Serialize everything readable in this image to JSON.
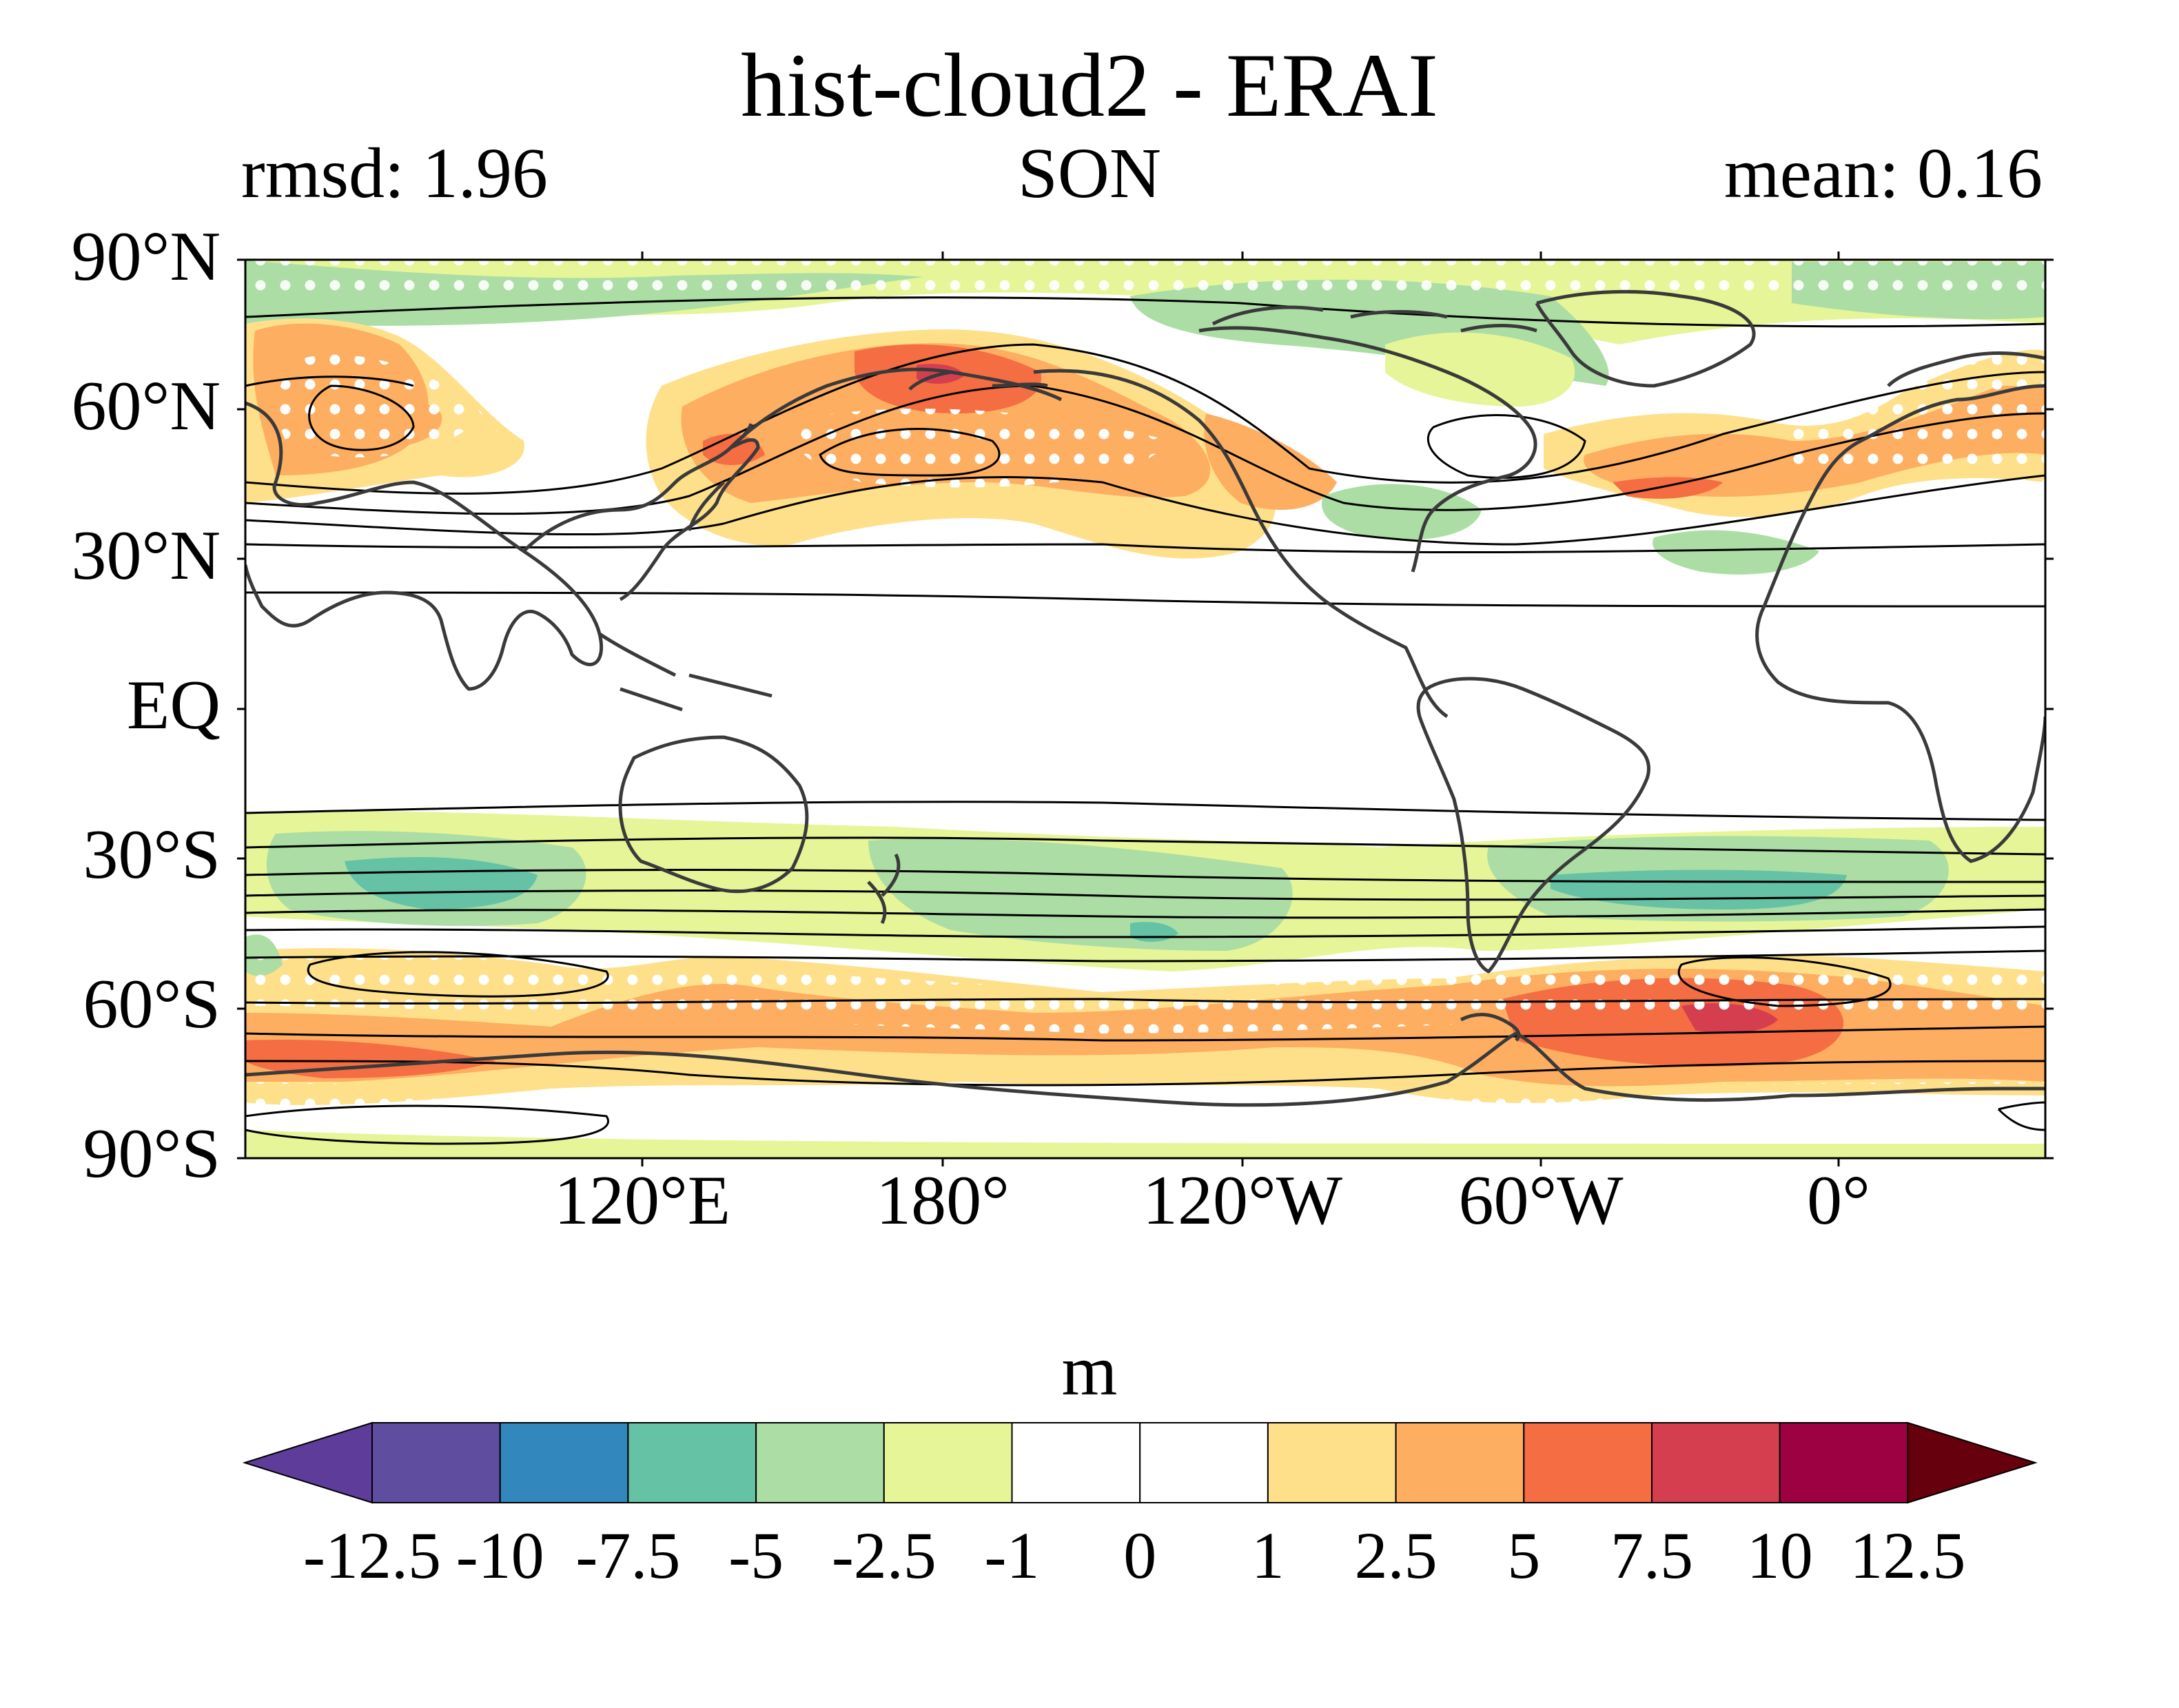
{
  "title": "hist-cloud2 - ERAI",
  "left_annotation": "rmsd: 1.96",
  "center_annotation": "SON",
  "right_annotation": "mean: 0.16",
  "map": {
    "projection": "PlateCarree, central longitude 150°W",
    "lat_labels": [
      "90°N",
      "60°N",
      "30°N",
      "EQ",
      "30°S",
      "60°S",
      "90°S"
    ],
    "lon_labels": [
      "120°E",
      "180°",
      "120°W",
      "60°W",
      "0°"
    ],
    "stippling": "white dots mark significant differences",
    "contours": "black lines: reference climatology"
  },
  "colorbar": {
    "unit": "m",
    "tick_labels": [
      "-12.5",
      "-10",
      "-7.5",
      "-5",
      "-2.5",
      "-1",
      "0",
      "1",
      "2.5",
      "5",
      "7.5",
      "10",
      "12.5"
    ],
    "colors": [
      "#5e3c99",
      "#5f4ea0",
      "#3288bd",
      "#66c2a5",
      "#abdda4",
      "#e6f598",
      "#ffffff",
      "#ffffff",
      "#fee08b",
      "#fdae61",
      "#f46d43",
      "#d53e4f",
      "#9e0142",
      "#67000d"
    ]
  },
  "chart_data": {
    "type": "heatmap",
    "title": "hist-cloud2 - ERAI",
    "season": "SON",
    "rmsd": 1.96,
    "mean": 0.16,
    "unit": "m",
    "levels": [
      -12.5,
      -10,
      -7.5,
      -5,
      -2.5,
      -1,
      0,
      1,
      2.5,
      5,
      7.5,
      10,
      12.5
    ],
    "extend": "both",
    "lat_range": [
      -90,
      90
    ],
    "lon_ticks": [
      120,
      180,
      -120,
      -60,
      0
    ]
  }
}
